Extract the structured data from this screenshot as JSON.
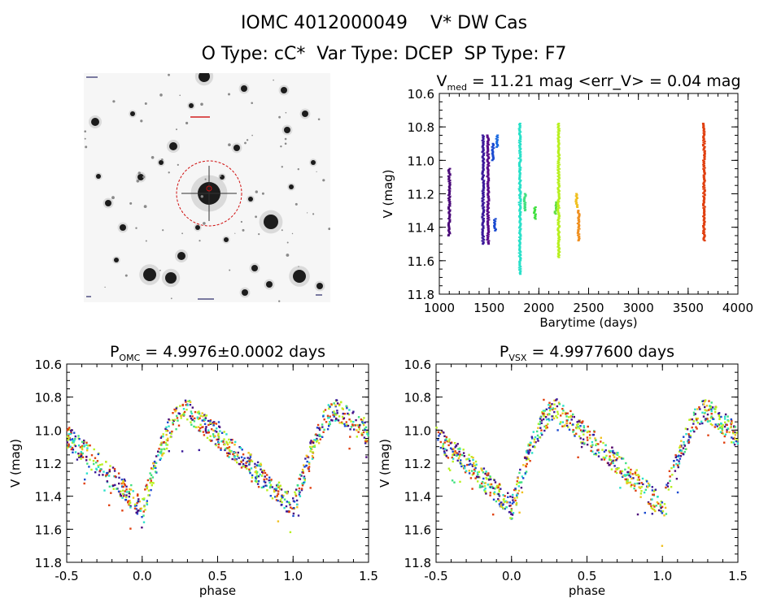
{
  "header": {
    "title": "IOMC 4012000049    V* DW Cas",
    "subtitle": "O Type: cC*  Var Type: DCEP  SP Type: F7"
  },
  "image": {
    "kind": "finder-chart",
    "marker_color": "#d01010"
  },
  "chart_data": [
    {
      "type": "scatter",
      "title": "V",
      "title_sub": "med",
      "title_rest": " = 11.21 mag <err_V> = 0.04 mag",
      "xlabel": "Barytime (days)",
      "ylabel": "V (mag)",
      "xlim": [
        1000,
        4000
      ],
      "ylim": [
        11.8,
        10.6
      ],
      "y_inverted": true,
      "xticks": [
        1000,
        1500,
        2000,
        2500,
        3000,
        3500,
        4000
      ],
      "yticks": [
        "10.6",
        "10.8",
        "11.0",
        "11.2",
        "11.4",
        "11.6",
        "11.8"
      ],
      "grid": false,
      "segments": [
        {
          "x": 1100,
          "y": [
            11.05,
            11.45
          ],
          "color": "#4b0a7a"
        },
        {
          "x": 1440,
          "y": [
            10.85,
            11.5
          ],
          "color": "#3a1a9a"
        },
        {
          "x": 1490,
          "y": [
            10.85,
            11.5
          ],
          "color": "#5a0a8a"
        },
        {
          "x": 1540,
          "y": [
            10.9,
            11.0
          ],
          "color": "#1a4ad0"
        },
        {
          "x": 1560,
          "y": [
            11.35,
            11.42
          ],
          "color": "#1a4ad0"
        },
        {
          "x": 1580,
          "y": [
            10.85,
            10.92
          ],
          "color": "#1a6ae0"
        },
        {
          "x": 1810,
          "y": [
            10.78,
            11.68
          ],
          "color": "#29e0c9"
        },
        {
          "x": 1860,
          "y": [
            11.2,
            11.3
          ],
          "color": "#40e080"
        },
        {
          "x": 1960,
          "y": [
            11.28,
            11.35
          ],
          "color": "#40e040"
        },
        {
          "x": 2170,
          "y": [
            11.25,
            11.32
          ],
          "color": "#60e040"
        },
        {
          "x": 2200,
          "y": [
            10.78,
            11.58
          ],
          "color": "#b8f020"
        },
        {
          "x": 2380,
          "y": [
            11.2,
            11.28
          ],
          "color": "#f0c020"
        },
        {
          "x": 2400,
          "y": [
            11.3,
            11.48
          ],
          "color": "#f09020"
        },
        {
          "x": 3660,
          "y": [
            10.78,
            11.48
          ],
          "color": "#e04010"
        }
      ]
    },
    {
      "type": "scatter",
      "title": "P",
      "title_sub": "OMC",
      "title_rest": " = 4.9976±0.0002 days",
      "xlabel": "phase",
      "ylabel": "V (mag)",
      "xlim": [
        -0.5,
        1.5
      ],
      "ylim": [
        11.8,
        10.6
      ],
      "y_inverted": true,
      "xticks": [
        "-0.5",
        "0.0",
        "0.5",
        "1.0",
        "1.5"
      ],
      "yticks": [
        "10.6",
        "10.8",
        "11.0",
        "11.2",
        "11.4",
        "11.6",
        "11.8"
      ],
      "grid": false,
      "light_curve": {
        "min_phase": 0.0,
        "max_phase": 0.3,
        "v_min": 11.48,
        "v_max": 10.88
      }
    },
    {
      "type": "scatter",
      "title": "P",
      "title_sub": "VSX",
      "title_rest": " = 4.9977600 days",
      "xlabel": "phase",
      "ylabel": "V (mag)",
      "xlim": [
        -0.5,
        1.5
      ],
      "ylim": [
        11.8,
        10.6
      ],
      "y_inverted": true,
      "xticks": [
        "-0.5",
        "0.0",
        "0.5",
        "1.0",
        "1.5"
      ],
      "yticks": [
        "10.6",
        "10.8",
        "11.0",
        "11.2",
        "11.4",
        "11.6",
        "11.8"
      ],
      "grid": false,
      "light_curve": {
        "min_phase": 0.0,
        "max_phase": 0.3,
        "v_min": 11.48,
        "v_max": 10.88
      }
    }
  ],
  "point_colors": [
    "#4b0a7a",
    "#3a1a9a",
    "#1a4ad0",
    "#29e0c9",
    "#40e080",
    "#b8f020",
    "#b8f020",
    "#f0c020",
    "#e04010",
    "#e04010"
  ]
}
